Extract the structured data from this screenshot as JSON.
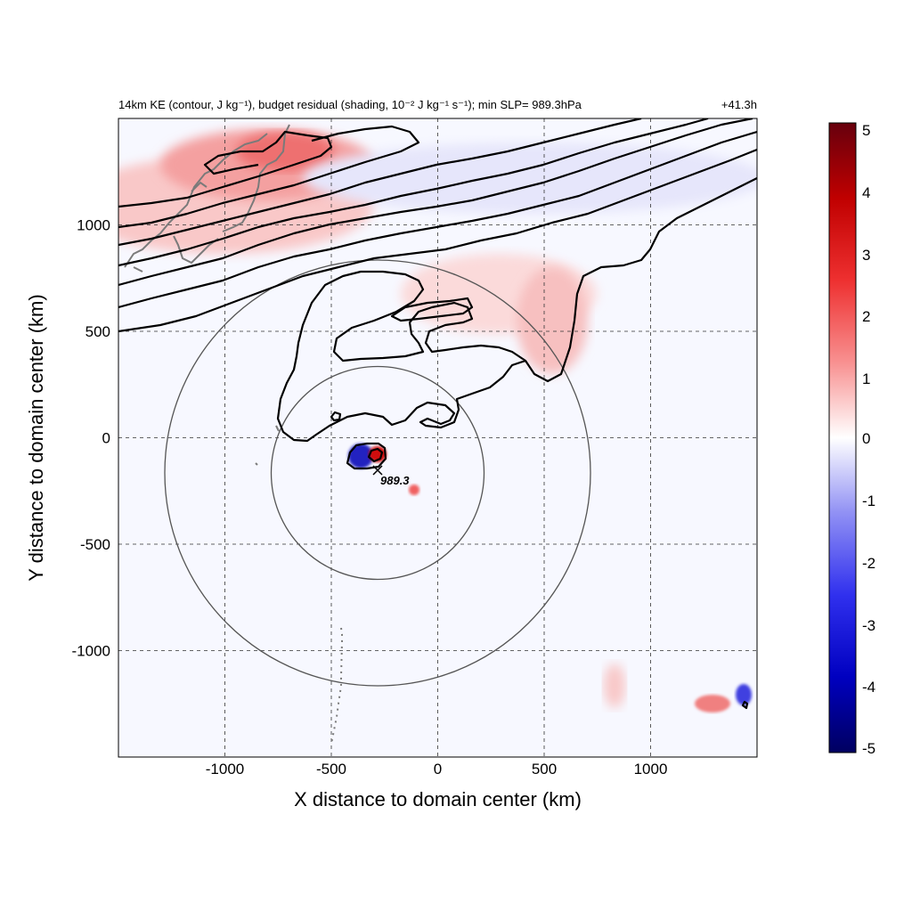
{
  "chart_data": {
    "type": "heatmap",
    "title_left": "14km KE (contour, J kg⁻¹), budget residual (shading, 10⁻² J kg⁻¹ s⁻¹); min SLP= 989.3hPa",
    "title_right": "+41.3h",
    "xlabel": "X distance to domain center (km)",
    "ylabel": "Y distance to domain center (km)",
    "xlim": [
      -1500,
      1500
    ],
    "ylim": [
      -1500,
      1500
    ],
    "x_ticks": [
      -1000,
      -500,
      0,
      500,
      1000
    ],
    "y_ticks": [
      -1000,
      -500,
      0,
      500,
      1000
    ],
    "x_tick_labels": [
      "-1000",
      "-500",
      "0",
      "500",
      "1000"
    ],
    "y_tick_labels": [
      "-1000",
      "-500",
      "0",
      "500",
      "1000"
    ],
    "grid": "dashed",
    "colorbar": {
      "min": -5,
      "max": 5,
      "ticks": [
        5,
        4,
        3,
        2,
        1,
        0,
        -1,
        -2,
        -3,
        -4,
        -5
      ],
      "tick_labels": [
        "5",
        "4",
        "3",
        "2",
        "1",
        "0",
        "-1",
        "-2",
        "-3",
        "-4",
        "-5"
      ],
      "colors": [
        "#67000d",
        "#e00000",
        "#f46060",
        "#fcbcbc",
        "#ffffff",
        "#bcbcf8",
        "#6060f0",
        "#0000e0",
        "#000070"
      ],
      "placement": "right"
    },
    "min_slp_marker": {
      "x": -280,
      "y": -150,
      "label": "989.3"
    },
    "range_circles": [
      {
        "center_x": -280,
        "center_y": -165,
        "radius_km": 500
      },
      {
        "center_x": -280,
        "center_y": -165,
        "radius_km": 1000
      }
    ]
  },
  "colors": {
    "positive": "#e03030",
    "negative": "#2030d0",
    "contour": "#000000",
    "coastline": "#7a7a7a",
    "circle": "#555555"
  }
}
